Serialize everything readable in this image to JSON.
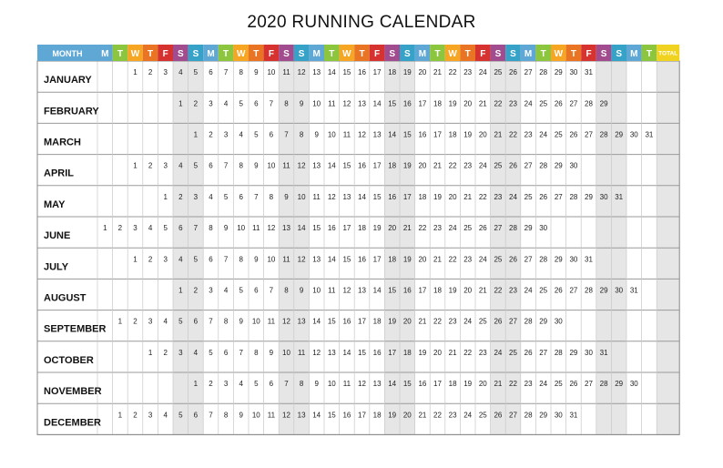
{
  "title": "2020 RUNNING CALENDAR",
  "header": {
    "month_label": "MONTH",
    "total_label": "TOTAL",
    "weekdays": [
      "M",
      "T",
      "W",
      "T",
      "F",
      "S",
      "S"
    ],
    "weekday_colors": [
      "#5fa8d6",
      "#8cc63e",
      "#f6a623",
      "#e87424",
      "#d6322f",
      "#a04c8e",
      "#36a2c8"
    ],
    "month_color": "#5fa8d6",
    "total_color": "#f0d320"
  },
  "weekend_shade": "#e6e6e6",
  "months": [
    {
      "name": "JANUARY",
      "offset": 2,
      "days": 31
    },
    {
      "name": "FEBRUARY",
      "offset": 5,
      "days": 29
    },
    {
      "name": "MARCH",
      "offset": 6,
      "days": 31
    },
    {
      "name": "APRIL",
      "offset": 2,
      "days": 30
    },
    {
      "name": "MAY",
      "offset": 4,
      "days": 31
    },
    {
      "name": "JUNE",
      "offset": 0,
      "days": 30
    },
    {
      "name": "JULY",
      "offset": 2,
      "days": 31
    },
    {
      "name": "AUGUST",
      "offset": 5,
      "days": 31
    },
    {
      "name": "SEPTEMBER",
      "offset": 1,
      "days": 30
    },
    {
      "name": "OCTOBER",
      "offset": 3,
      "days": 31
    },
    {
      "name": "NOVEMBER",
      "offset": 6,
      "days": 30
    },
    {
      "name": "DECEMBER",
      "offset": 1,
      "days": 31
    }
  ]
}
